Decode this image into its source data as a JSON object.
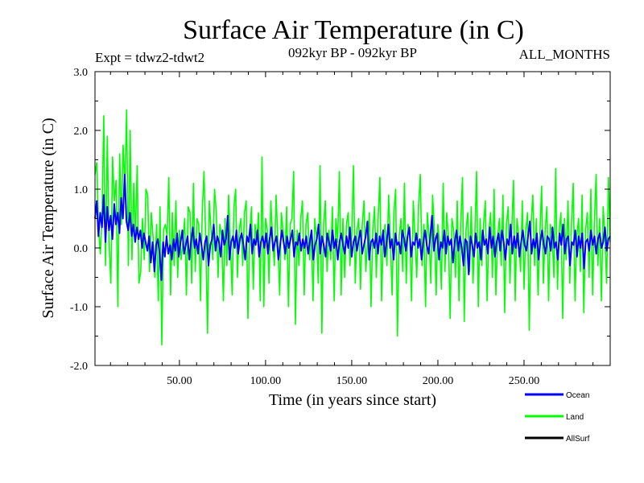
{
  "chart_data": {
    "type": "line",
    "title": "Surface Air Temperature (in C)",
    "subtitle_left": "Expt = tdwz2-tdwt2",
    "subtitle_center": "092kyr BP - 092kyr BP",
    "subtitle_right": "ALL_MONTHS",
    "xlabel": "Time (in years since start)",
    "ylabel": "Surface Air Temperature (in C)",
    "xlim": [
      1,
      300
    ],
    "ylim": [
      -2.0,
      3.0
    ],
    "x_ticks": [
      50,
      100,
      150,
      200,
      250
    ],
    "x_tick_labels": [
      "50.00",
      "100.00",
      "150.00",
      "200.00",
      "250.00"
    ],
    "y_ticks": [
      -2.0,
      -1.0,
      0.0,
      1.0,
      2.0,
      3.0
    ],
    "y_tick_labels": [
      "-2.0",
      "-1.0",
      "0.0",
      "1.0",
      "2.0",
      "3.0"
    ],
    "grid": false,
    "legend_position": "bottom-right",
    "series": [
      {
        "name": "Land",
        "color": "#00ff00",
        "values": [
          1.25,
          1.45,
          0.35,
          -0.1,
          0.5,
          2.25,
          -0.3,
          1.9,
          0.1,
          -0.6,
          1.55,
          0.8,
          1.15,
          -1.0,
          1.6,
          0.4,
          1.75,
          1.05,
          2.35,
          -0.3,
          2.0,
          -0.2,
          1.1,
          0.2,
          1.4,
          -0.6,
          -0.4,
          0.5,
          -0.2,
          1.0,
          0.9,
          -0.4,
          0.6,
          0.2,
          -0.5,
          0.4,
          -0.9,
          0.7,
          -1.65,
          0.3,
          0.4,
          0.2,
          1.2,
          -0.8,
          0.6,
          -0.3,
          0.8,
          -0.5,
          0.3,
          -0.2,
          0.1,
          0.5,
          -0.8,
          0.7,
          0.6,
          -0.6,
          1.1,
          -0.4,
          0.5,
          0.4,
          -0.9,
          0.6,
          1.3,
          0.1,
          -1.45,
          0.8,
          0.3,
          -0.2,
          1.0,
          0.6,
          -0.5,
          0.4,
          0.2,
          -0.9,
          0.5,
          -0.3,
          0.9,
          0.1,
          -0.8,
          0.7,
          1.0,
          -0.5,
          0.3,
          0.5,
          -0.3,
          0.6,
          0.8,
          -1.2,
          0.2,
          0.7,
          -0.7,
          0.4,
          0.1,
          0.6,
          -0.9,
          1.55,
          -1.0,
          0.5,
          0.3,
          -0.6,
          0.8,
          0.2,
          -0.3,
          0.9,
          0.1,
          -0.8,
          0.6,
          0.3,
          -0.2,
          0.7,
          -1.0,
          0.4,
          0.5,
          1.3,
          -1.3,
          0.3,
          -0.3,
          0.5,
          0.8,
          -0.8,
          0.4,
          0.6,
          -0.2,
          0.3,
          -0.9,
          0.5,
          0.2,
          -0.6,
          1.4,
          -1.45,
          0.4,
          0.8,
          -0.4,
          0.3,
          -0.2,
          0.7,
          -0.9,
          0.5,
          0.1,
          1.3,
          -0.8,
          0.5,
          -0.5,
          0.4,
          0.6,
          -0.3,
          0.2,
          1.4,
          -0.6,
          0.3,
          0.5,
          -0.7,
          0.4,
          0.8,
          -0.4,
          0.1,
          0.6,
          -1.0,
          0.3,
          0.7,
          -0.5,
          0.5,
          1.2,
          -0.9,
          0.2,
          0.4,
          -0.3,
          0.9,
          0.1,
          -0.8,
          0.6,
          1.0,
          -1.5,
          0.2,
          0.5,
          -0.4,
          1.1,
          -0.6,
          0.4,
          0.3,
          -0.9,
          0.8,
          0.2,
          -0.5,
          0.7,
          1.25,
          -0.3,
          0.4,
          -1.0,
          0.6,
          0.2,
          -0.6,
          0.9,
          0.3,
          -0.8,
          0.4,
          0.1,
          -0.7,
          1.1,
          -0.4,
          0.6,
          0.2,
          -1.2,
          0.5,
          0.3,
          -0.5,
          0.8,
          -0.9,
          0.4,
          1.2,
          -1.25,
          0.3,
          0.6,
          -0.4,
          0.7,
          -0.6,
          0.2,
          1.3,
          -1.0,
          0.5,
          -0.3,
          0.4,
          0.8,
          -0.9,
          0.3,
          0.6,
          -0.5,
          1.0,
          -0.8,
          0.2,
          0.5,
          -0.3,
          0.9,
          -1.1,
          0.4,
          0.7,
          -0.6,
          0.3,
          1.15,
          -0.9,
          0.5,
          0.2,
          -0.4,
          0.8,
          -0.7,
          0.3,
          0.6,
          -1.4,
          0.4,
          0.9,
          -0.3,
          0.5,
          -0.8,
          0.2,
          1.05,
          -0.6,
          0.3,
          0.7,
          -0.9,
          0.4,
          0.2,
          -0.5,
          1.35,
          -0.7,
          0.3,
          0.6,
          -1.2,
          0.5,
          -0.2,
          0.8,
          -0.6,
          0.4,
          1.1,
          -0.9,
          0.2,
          0.5,
          -0.4,
          0.9,
          -1.1,
          0.3,
          0.6,
          -0.5,
          1.0,
          -0.8,
          0.4,
          1.25,
          -0.3,
          0.5,
          -0.9,
          0.7,
          0.2,
          -0.6,
          1.2,
          0.1
        ]
      },
      {
        "name": "Ocean",
        "color": "#0000ff",
        "values": [
          0.5,
          0.8,
          0.2,
          0.6,
          0.35,
          0.9,
          0.1,
          0.7,
          0.3,
          0.55,
          0.15,
          0.75,
          0.4,
          0.6,
          0.25,
          0.85,
          0.5,
          1.25,
          0.45,
          0.3,
          0.6,
          0.2,
          0.4,
          0.1,
          0.35,
          0.15,
          0.3,
          0.0,
          0.25,
          0.1,
          -0.05,
          0.2,
          -0.25,
          0.1,
          -0.4,
          0.05,
          0.15,
          -0.1,
          -0.55,
          0.1,
          -0.15,
          0.2,
          -0.1,
          0.05,
          -0.2,
          0.15,
          -0.05,
          0.25,
          -0.15,
          0.1,
          0.3,
          -0.1,
          0.05,
          0.2,
          -0.2,
          0.1,
          0.35,
          0.0,
          0.15,
          -0.1,
          0.25,
          0.05,
          -0.2,
          0.1,
          0.2,
          -0.3,
          0.05,
          0.15,
          0.4,
          -0.05,
          0.2,
          0.1,
          -0.15,
          0.3,
          0.05,
          0.15,
          0.55,
          -0.2,
          0.1,
          0.2,
          0.0,
          0.3,
          -0.1,
          0.15,
          0.25,
          0.05,
          -0.2,
          0.2,
          0.1,
          0.4,
          -0.1,
          0.15,
          0.05,
          0.3,
          -0.15,
          0.1,
          0.2,
          0.0,
          0.25,
          -0.1,
          0.15,
          0.35,
          -0.05,
          0.1,
          0.2,
          -0.2,
          0.05,
          0.3,
          0.1,
          -0.1,
          0.2,
          0.0,
          0.15,
          0.3,
          -0.15,
          0.1,
          0.05,
          0.25,
          -0.05,
          0.15,
          0.0,
          0.2,
          -0.1,
          0.1,
          0.3,
          -0.2,
          0.05,
          0.15,
          0.4,
          -0.1,
          0.2,
          0.05,
          -0.15,
          0.25,
          0.1,
          -0.05,
          0.3,
          0.0,
          0.15,
          -0.2,
          0.1,
          0.25,
          0.05,
          -0.1,
          0.2,
          0.0,
          0.35,
          -0.15,
          0.1,
          0.2,
          -0.05,
          0.15,
          0.3,
          -0.1,
          0.05,
          0.2,
          0.45,
          -0.2,
          0.1,
          0.15,
          0.0,
          0.25,
          -0.1,
          0.2,
          0.05,
          0.3,
          -0.15,
          0.1,
          0.4,
          0.0,
          0.15,
          -0.2,
          0.25,
          0.05,
          0.1,
          -0.1,
          0.3,
          0.15,
          -0.05,
          0.2,
          0.35,
          -0.15,
          0.1,
          0.05,
          0.25,
          0.0,
          0.15,
          -0.2,
          0.1,
          0.3,
          0.05,
          -0.1,
          0.2,
          0.55,
          -0.05,
          0.15,
          0.25,
          -0.2,
          0.1,
          0.0,
          0.3,
          -0.1,
          0.2,
          0.05,
          0.15,
          -0.25,
          0.1,
          0.3,
          -0.05,
          0.2,
          0.0,
          -0.3,
          0.15,
          0.1,
          -0.45,
          0.2,
          0.05,
          -0.15,
          0.25,
          0.0,
          0.1,
          -0.2,
          0.3,
          0.05,
          0.15,
          -0.1,
          0.35,
          0.0,
          0.2,
          -0.15,
          0.1,
          0.25,
          -0.05,
          0.3,
          0.1,
          -0.2,
          0.15,
          0.05,
          0.4,
          -0.1,
          0.2,
          0.0,
          0.25,
          -0.15,
          0.1,
          0.3,
          0.05,
          -0.05,
          0.2,
          0.45,
          -0.1,
          0.15,
          0.0,
          0.25,
          -0.2,
          0.1,
          0.3,
          0.05,
          -0.1,
          0.2,
          0.15,
          -0.05,
          0.35,
          0.0,
          0.1,
          -0.2,
          0.25,
          0.05,
          0.4,
          -0.1,
          0.15,
          0.2,
          -0.3,
          0.1,
          0.05,
          0.3,
          -0.15,
          0.2,
          0.0,
          0.25,
          -0.35,
          0.1,
          0.15,
          -0.05,
          0.3,
          0.05,
          0.2,
          -0.1,
          0.15,
          0.25,
          0.0,
          0.1,
          0.35,
          -0.05,
          0.15,
          0.2
        ]
      },
      {
        "name": "AllSurf",
        "color": "#000000",
        "values": []
      }
    ]
  }
}
